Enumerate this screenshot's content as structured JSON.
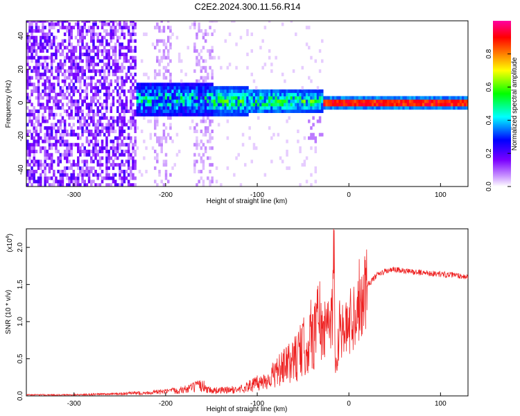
{
  "chart_data": [
    {
      "type": "heatmap",
      "title": "C2E2.2024.300.11.56.R14",
      "xlabel": "Height of straight line (km)",
      "ylabel": "Frequency (Hz)",
      "xlim": [
        -352,
        130
      ],
      "ylim": [
        -50,
        49
      ],
      "xticks": [
        -300,
        -200,
        -100,
        0,
        100
      ],
      "yticks": [
        -40,
        -20,
        0,
        20,
        40
      ],
      "colorbar": {
        "label": "Normalized spectral amplitude",
        "range": [
          0,
          1
        ],
        "ticks": [
          0.0,
          0.2,
          0.4,
          0.6,
          0.8
        ],
        "colors": [
          "#ffffff",
          "#cc99ff",
          "#7b00ff",
          "#0000ff",
          "#00ffff",
          "#00ff00",
          "#ffff00",
          "#ff8000",
          "#ff0000",
          "#ff00a0"
        ]
      },
      "regions": [
        {
          "x_range": [
            -352,
            -233
          ],
          "freq_range": [
            -50,
            49
          ],
          "level": 0.15,
          "description": "noise"
        },
        {
          "x_range": [
            -233,
            -150
          ],
          "freq_range": [
            -10,
            12
          ],
          "level": 0.4
        },
        {
          "x_range": [
            -150,
            -30
          ],
          "freq_range": [
            -8,
            10
          ],
          "level": 0.5
        },
        {
          "x_range": [
            -30,
            130
          ],
          "freq_range": [
            -2,
            2
          ],
          "level": 0.9
        }
      ],
      "grid": false
    },
    {
      "type": "line",
      "xlabel": "Height of straight line (km)",
      "ylabel": "SNR (10 * v/v)",
      "y_multiplier": "(x10^4)",
      "y_multiplier_base": "(x10",
      "y_multiplier_exp": "4",
      "y_multiplier_close": ")",
      "xlim": [
        -352,
        130
      ],
      "ylim": [
        0,
        2.25
      ],
      "xticks": [
        -300,
        -200,
        -100,
        0,
        100
      ],
      "yticks": [
        0.0,
        0.5,
        1.0,
        1.5,
        2.0
      ],
      "series": [
        {
          "color": "#ee2222",
          "x": [
            -352,
            -300,
            -250,
            -220,
            -200,
            -180,
            -160,
            -150,
            -120,
            -100,
            -90,
            -80,
            -70,
            -60,
            -50,
            -40,
            -35,
            -30,
            -25,
            -20,
            -18,
            -16,
            -15,
            -12,
            -10,
            -5,
            0,
            5,
            10,
            15,
            20,
            25,
            30,
            40,
            50,
            60,
            80,
            100,
            120,
            130
          ],
          "y": [
            0.01,
            0.01,
            0.02,
            0.03,
            0.04,
            0.06,
            0.1,
            0.05,
            0.06,
            0.12,
            0.15,
            0.22,
            0.28,
            0.35,
            0.45,
            0.6,
            0.7,
            0.8,
            0.9,
            1.0,
            1.2,
            2.25,
            0.3,
            0.7,
            1.0,
            0.8,
            1.0,
            1.1,
            1.25,
            1.4,
            1.5,
            1.55,
            1.62,
            1.68,
            1.7,
            1.68,
            1.66,
            1.64,
            1.62,
            1.6
          ]
        }
      ],
      "grid": false
    }
  ]
}
